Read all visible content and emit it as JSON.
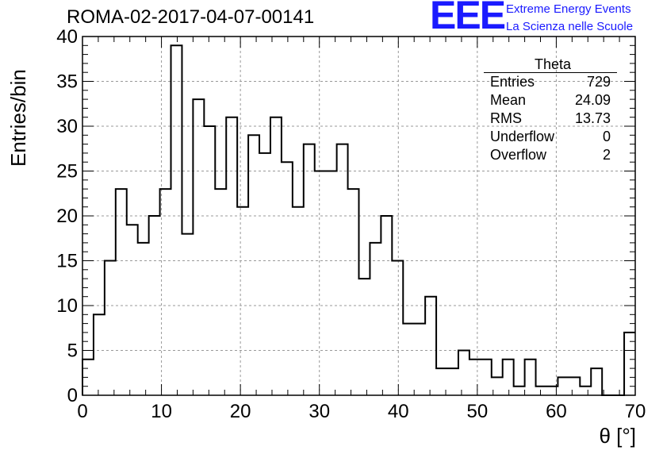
{
  "title": "ROMA-02-2017-04-07-00141",
  "logo": {
    "mark": "EEE",
    "line1": "Extreme Energy Events",
    "line2": "La Scienza nelle Scuole"
  },
  "stats": {
    "title": "Theta",
    "rows": [
      {
        "label": "Entries",
        "value": "729"
      },
      {
        "label": "Mean",
        "value": "24.09"
      },
      {
        "label": "RMS",
        "value": "13.73"
      },
      {
        "label": "Underflow",
        "value": "0"
      },
      {
        "label": "Overflow",
        "value": "2"
      }
    ]
  },
  "chart_data": {
    "type": "histogram",
    "xlabel": "θ [°]",
    "ylabel": "Entries/bin",
    "xlim": [
      0,
      70
    ],
    "ylim": [
      0,
      40
    ],
    "bin_width": 1.4,
    "values": [
      4,
      9,
      15,
      23,
      19,
      17,
      20,
      23,
      39,
      18,
      33,
      30,
      23,
      31,
      21,
      29,
      27,
      31,
      26,
      21,
      28,
      25,
      25,
      28,
      23,
      13,
      17,
      20,
      15,
      8,
      8,
      11,
      3,
      3,
      5,
      4,
      4,
      2,
      4,
      1,
      4,
      1,
      1,
      2,
      2,
      1,
      3,
      0,
      0,
      7
    ],
    "x_ticks": [
      0,
      10,
      20,
      30,
      40,
      50,
      60,
      70
    ],
    "y_ticks": [
      0,
      5,
      10,
      15,
      20,
      25,
      30,
      35,
      40
    ],
    "grid": true,
    "line_color": "#000000",
    "grid_color": "#999999"
  }
}
